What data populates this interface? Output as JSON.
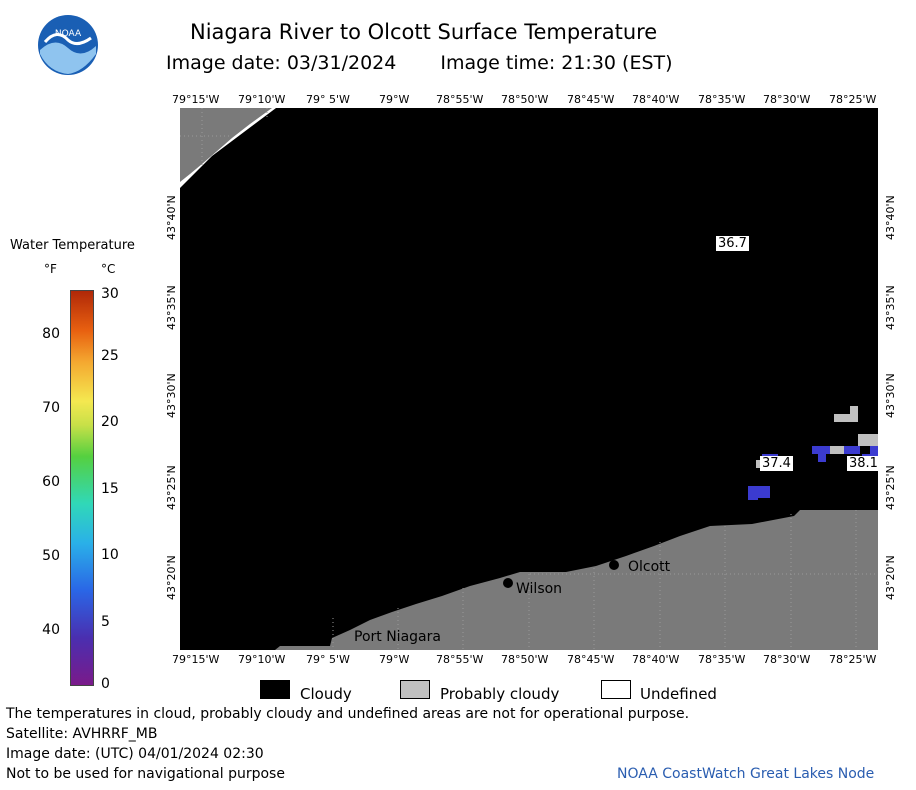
{
  "header": {
    "title": "Niagara River to Olcott Surface Temperature",
    "image_date": "Image date: 03/31/2024",
    "image_time": "Image time: 21:30 (EST)",
    "logo_icon": "noaa-logo-icon",
    "logo_text": "NOAA"
  },
  "map": {
    "longitude_labels": [
      "79°15'W",
      "79°10'W",
      "79° 5'W",
      "79°W",
      "78°55'W",
      "78°50'W",
      "78°45'W",
      "78°40'W",
      "78°35'W",
      "78°30'W",
      "78°25'W"
    ],
    "latitude_labels": [
      "43°40'N",
      "43°35'N",
      "43°30'N",
      "43°25'N",
      "43°20'N"
    ],
    "places": [
      {
        "name": "Olcott"
      },
      {
        "name": "Wilson"
      },
      {
        "name": "Port Niagara"
      }
    ],
    "temperature_readings": [
      "36.7",
      "37.4",
      "38.1"
    ]
  },
  "legend": {
    "title": "Water Temperature",
    "unit_f": "°F",
    "unit_c": "°C",
    "fahrenheit_ticks": [
      "80",
      "70",
      "60",
      "50",
      "40"
    ],
    "celsius_ticks": [
      "30",
      "25",
      "20",
      "15",
      "10",
      "5",
      "0"
    ]
  },
  "key": {
    "cloudy": "Cloudy",
    "probably_cloudy": "Probably cloudy",
    "undefined": "Undefined",
    "colors": {
      "cloudy": "#000000",
      "probably_cloudy": "#c0c0c0",
      "undefined": "#ffffff"
    }
  },
  "footer": {
    "disclaimer": "The temperatures in cloud, probably cloudy and undefined areas are not for operational purpose.",
    "satellite": "Satellite: AVHRRF_MB",
    "utc_date": "Image date: (UTC) 04/01/2024  02:30",
    "navigation": "Not to be used for navigational purpose",
    "credit": "NOAA CoastWatch Great Lakes Node"
  }
}
